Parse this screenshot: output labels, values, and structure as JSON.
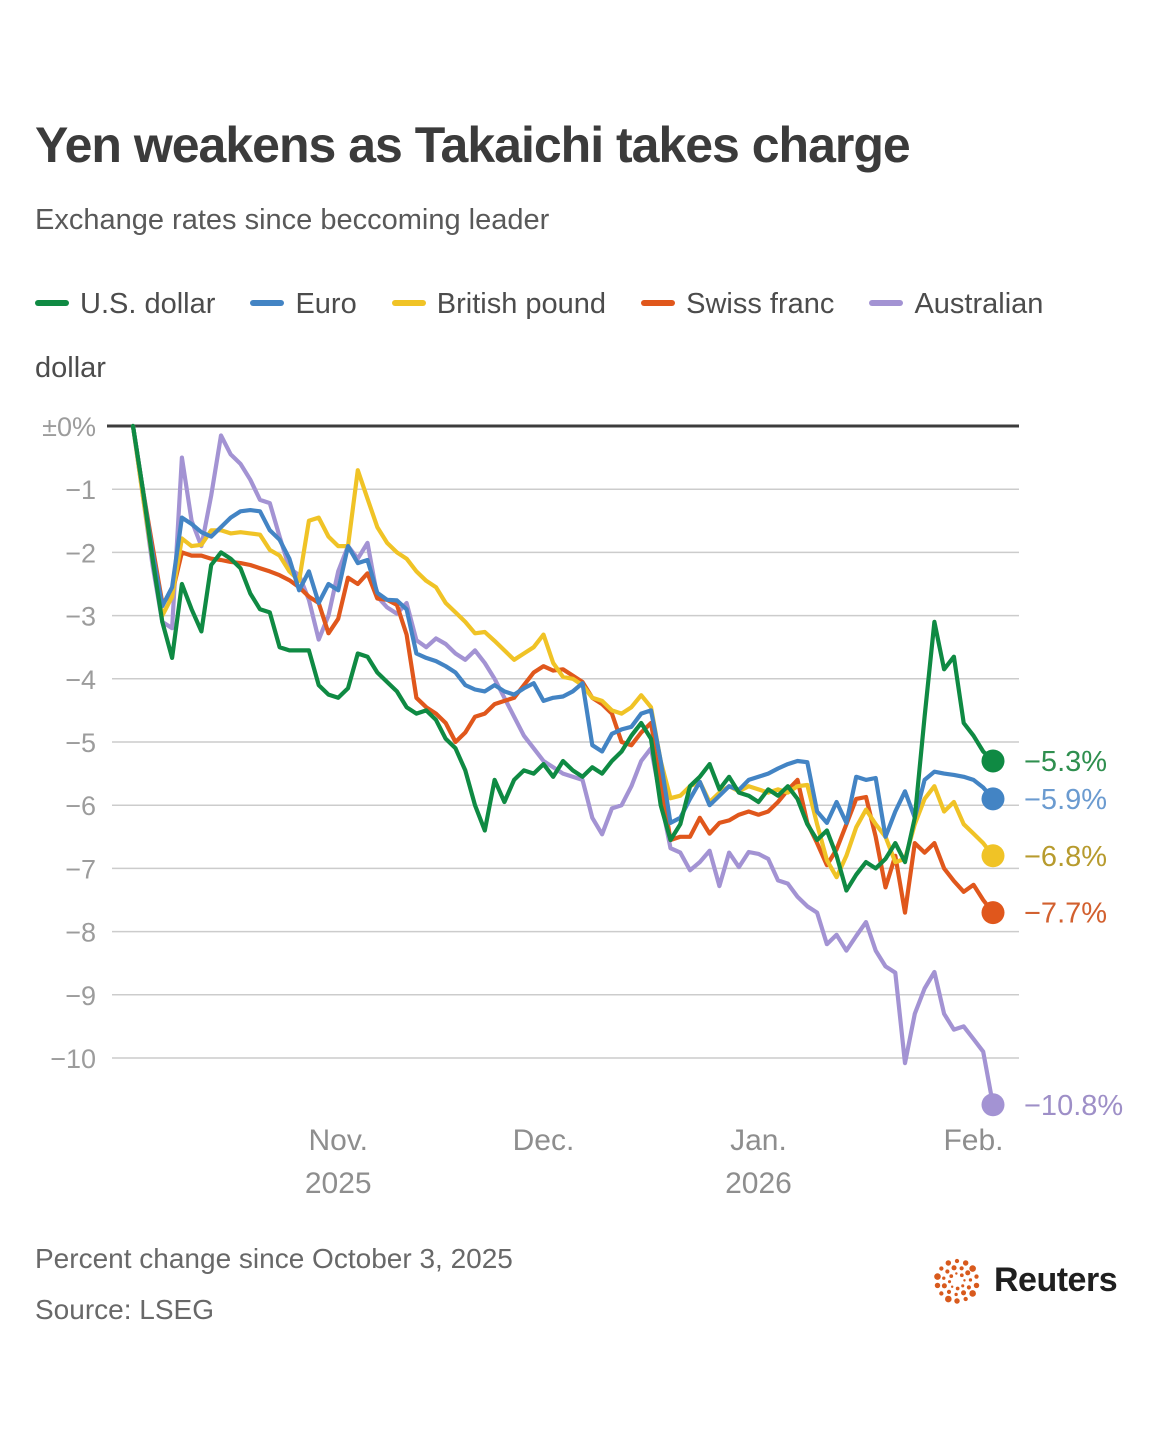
{
  "header": {
    "title": "Yen weakens as Takaichi takes charge",
    "subtitle": "Exchange rates since beccoming leader"
  },
  "chart_data": {
    "type": "line",
    "title": "Yen weakens as Takaichi takes charge",
    "subtitle": "Exchange rates since beccoming leader",
    "xlabel": "",
    "ylabel": "Percent change since October 3, 2025",
    "x_unit": "trading days since Oct 3, 2025",
    "ylim": [
      -11.5,
      0.3
    ],
    "grid": "horizontal",
    "legend_position": "top",
    "y_axis": {
      "ticks": [
        {
          "label": "±0%",
          "value": 0
        },
        {
          "label": "−1",
          "value": -1
        },
        {
          "label": "−2",
          "value": -2
        },
        {
          "label": "−3",
          "value": -3
        },
        {
          "label": "−4",
          "value": -4
        },
        {
          "label": "−5",
          "value": -5
        },
        {
          "label": "−6",
          "value": -6
        },
        {
          "label": "−7",
          "value": -7
        },
        {
          "label": "−8",
          "value": -8
        },
        {
          "label": "−9",
          "value": -9
        },
        {
          "label": "−10",
          "value": -10
        }
      ]
    },
    "x_axis": {
      "ticks": [
        {
          "label": "Nov.",
          "year": "2025",
          "day": 21
        },
        {
          "label": "Dec.",
          "day": 42
        },
        {
          "label": "Jan.",
          "year": "2026",
          "day": 64
        },
        {
          "label": "Feb.",
          "day": 86
        }
      ]
    },
    "series": [
      {
        "name": "U.S. dollar",
        "color": "#0f8a43",
        "label_color": "#2f8f4f",
        "final_label": "−5.3%",
        "final_value": -5.3,
        "values": [
          0,
          -1,
          -2.1,
          -3.1,
          -3.67,
          -2.5,
          -2.9,
          -3.25,
          -2.2,
          -2,
          -2.1,
          -2.25,
          -2.65,
          -2.9,
          -2.95,
          -3.5,
          -3.55,
          -3.55,
          -3.55,
          -4.1,
          -4.25,
          -4.3,
          -4.15,
          -3.6,
          -3.65,
          -3.9,
          -4.05,
          -4.2,
          -4.45,
          -4.55,
          -4.5,
          -4.65,
          -4.95,
          -5.1,
          -5.45,
          -6,
          -6.4,
          -5.6,
          -5.95,
          -5.6,
          -5.45,
          -5.5,
          -5.35,
          -5.55,
          -5.3,
          -5.45,
          -5.55,
          -5.4,
          -5.5,
          -5.3,
          -5.15,
          -4.9,
          -4.7,
          -4.95,
          -6,
          -6.55,
          -6.3,
          -5.7,
          -5.55,
          -5.35,
          -5.75,
          -5.55,
          -5.8,
          -5.85,
          -5.95,
          -5.75,
          -5.85,
          -5.7,
          -5.9,
          -6.3,
          -6.55,
          -6.4,
          -6.8,
          -7.35,
          -7.1,
          -6.9,
          -7,
          -6.85,
          -6.6,
          -6.9,
          -6.2,
          -4.6,
          -3.1,
          -3.85,
          -3.65,
          -4.7,
          -4.9,
          -5.15,
          -5.3
        ]
      },
      {
        "name": "Euro",
        "color": "#4384c4",
        "label_color": "#6b9bd0",
        "final_label": "−5.9%",
        "final_value": -5.9,
        "values": [
          0,
          -1,
          -2,
          -2.85,
          -2.55,
          -1.45,
          -1.55,
          -1.68,
          -1.75,
          -1.6,
          -1.45,
          -1.35,
          -1.33,
          -1.35,
          -1.65,
          -1.8,
          -2.1,
          -2.6,
          -2.3,
          -2.8,
          -2.5,
          -2.6,
          -1.9,
          -2.17,
          -2.12,
          -2.64,
          -2.75,
          -2.76,
          -2.9,
          -3.6,
          -3.67,
          -3.72,
          -3.8,
          -3.9,
          -4.1,
          -4.17,
          -4.2,
          -4.1,
          -4.2,
          -4.25,
          -4.15,
          -4.07,
          -4.35,
          -4.3,
          -4.28,
          -4.2,
          -4.07,
          -5.05,
          -5.15,
          -4.87,
          -4.8,
          -4.76,
          -4.55,
          -4.5,
          -5.3,
          -6.28,
          -6.2,
          -5.9,
          -5.63,
          -6,
          -5.85,
          -5.7,
          -5.76,
          -5.6,
          -5.55,
          -5.5,
          -5.42,
          -5.35,
          -5.3,
          -5.32,
          -6.1,
          -6.28,
          -5.95,
          -6.28,
          -5.55,
          -5.6,
          -5.57,
          -6.5,
          -6.1,
          -5.78,
          -6.2,
          -5.6,
          -5.47,
          -5.5,
          -5.52,
          -5.55,
          -5.6,
          -5.72,
          -5.9
        ]
      },
      {
        "name": "British pound",
        "color": "#f0c326",
        "label_color": "#b79b2e",
        "final_label": "−6.8%",
        "final_value": -6.8,
        "values": [
          0,
          -1.1,
          -2.1,
          -3,
          -2.7,
          -1.78,
          -1.9,
          -1.88,
          -1.65,
          -1.65,
          -1.7,
          -1.68,
          -1.7,
          -1.72,
          -1.96,
          -2.05,
          -2.3,
          -2.45,
          -1.5,
          -1.45,
          -1.75,
          -1.9,
          -1.9,
          -0.7,
          -1.15,
          -1.6,
          -1.85,
          -2,
          -2.1,
          -2.3,
          -2.45,
          -2.55,
          -2.8,
          -2.95,
          -3.1,
          -3.28,
          -3.26,
          -3.4,
          -3.55,
          -3.7,
          -3.6,
          -3.5,
          -3.3,
          -3.75,
          -3.97,
          -4,
          -4.1,
          -4.3,
          -4.35,
          -4.5,
          -4.55,
          -4.45,
          -4.26,
          -4.45,
          -5.3,
          -5.89,
          -5.85,
          -5.7,
          -5.63,
          -5.95,
          -5.8,
          -5.7,
          -5.78,
          -5.7,
          -5.75,
          -5.8,
          -5.75,
          -5.8,
          -5.7,
          -5.68,
          -6.3,
          -6.87,
          -7.14,
          -6.8,
          -6.35,
          -6.07,
          -6.3,
          -6.5,
          -6.9,
          -6.85,
          -6.3,
          -5.9,
          -5.7,
          -6.1,
          -5.95,
          -6.3,
          -6.45,
          -6.6,
          -6.8
        ]
      },
      {
        "name": "Swiss franc",
        "color": "#e0571c",
        "label_color": "#d2602f",
        "final_label": "−7.7%",
        "final_value": -7.7,
        "values": [
          0,
          -1,
          -1.9,
          -2.8,
          -2.65,
          -2,
          -2.05,
          -2.05,
          -2.1,
          -2.12,
          -2.15,
          -2.17,
          -2.2,
          -2.25,
          -2.3,
          -2.36,
          -2.44,
          -2.55,
          -2.7,
          -2.8,
          -3.28,
          -3.05,
          -2.4,
          -2.5,
          -2.33,
          -2.73,
          -2.75,
          -2.83,
          -3.3,
          -4.3,
          -4.45,
          -4.55,
          -4.7,
          -5,
          -4.85,
          -4.6,
          -4.55,
          -4.4,
          -4.35,
          -4.3,
          -4.1,
          -3.9,
          -3.8,
          -3.87,
          -3.85,
          -3.95,
          -4.05,
          -4.3,
          -4.4,
          -4.55,
          -5,
          -5.05,
          -4.85,
          -4.7,
          -5.6,
          -6.55,
          -6.5,
          -6.5,
          -6.2,
          -6.45,
          -6.28,
          -6.24,
          -6.15,
          -6.1,
          -6.15,
          -6.1,
          -5.95,
          -5.76,
          -5.6,
          -6.28,
          -6.6,
          -6.95,
          -6.7,
          -6.3,
          -5.9,
          -5.87,
          -6.5,
          -7.3,
          -6.8,
          -7.7,
          -6.6,
          -6.75,
          -6.6,
          -7,
          -7.2,
          -7.37,
          -7.26,
          -7.5,
          -7.7
        ]
      },
      {
        "name": "Australian dollar",
        "color": "#a393d3",
        "label_color": "#9e8fc7",
        "final_label": "−10.8%",
        "final_value": -10.8,
        "values": [
          0,
          -1.1,
          -2.2,
          -3.1,
          -3.2,
          -0.5,
          -1.5,
          -1.9,
          -1.1,
          -0.15,
          -0.45,
          -0.6,
          -0.85,
          -1.17,
          -1.22,
          -1.75,
          -2.25,
          -2.36,
          -2.75,
          -3.38,
          -3,
          -2.3,
          -1.9,
          -2.1,
          -1.85,
          -2.7,
          -2.87,
          -2.97,
          -2.8,
          -3.39,
          -3.5,
          -3.36,
          -3.45,
          -3.6,
          -3.7,
          -3.55,
          -3.75,
          -4,
          -4.3,
          -4.6,
          -4.9,
          -5.1,
          -5.3,
          -5.4,
          -5.5,
          -5.55,
          -5.6,
          -6.2,
          -6.46,
          -6.05,
          -6,
          -5.7,
          -5.3,
          -5.1,
          -5.9,
          -6.68,
          -6.75,
          -7.03,
          -6.9,
          -6.72,
          -7.28,
          -6.75,
          -6.98,
          -6.74,
          -6.77,
          -6.85,
          -7.19,
          -7.24,
          -7.45,
          -7.6,
          -7.7,
          -8.2,
          -8.05,
          -8.3,
          -8.07,
          -7.85,
          -8.3,
          -8.55,
          -8.65,
          -10.08,
          -9.3,
          -8.9,
          -8.64,
          -9.3,
          -9.55,
          -9.5,
          -9.7,
          -9.9,
          -10.74
        ]
      }
    ]
  },
  "footer": {
    "note": "Percent change since October 3, 2025",
    "source": "Source: LSEG",
    "brand": "Reuters",
    "logo_color": "#d85a1d"
  }
}
